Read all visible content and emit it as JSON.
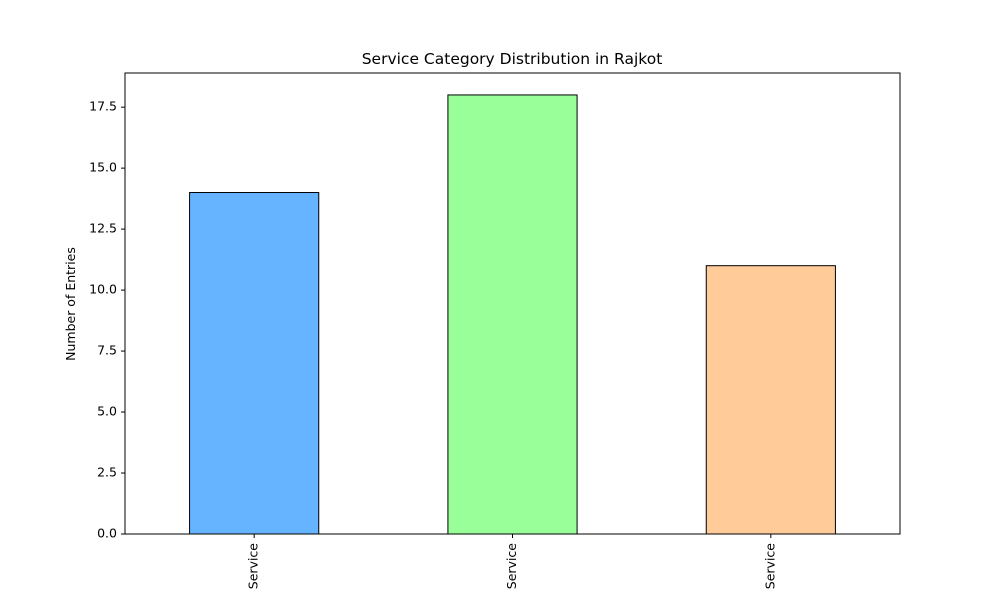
{
  "chart_data": {
    "type": "bar",
    "title": "Service Category Distribution in Rajkot",
    "xlabel": "",
    "ylabel": "Number of Entries",
    "categories": [
      "Service",
      "Service",
      "Service"
    ],
    "values": [
      14,
      18,
      11
    ],
    "bar_colors": [
      "#66b3ff",
      "#99ff99",
      "#ffcc99"
    ],
    "edge_color": "#000000",
    "ylim": [
      0,
      18.9
    ],
    "yticks": [
      0.0,
      2.5,
      5.0,
      7.5,
      10.0,
      12.5,
      15.0,
      17.5
    ],
    "ytick_labels": [
      "0.0",
      "2.5",
      "5.0",
      "7.5",
      "10.0",
      "12.5",
      "15.0",
      "17.5"
    ],
    "grid": false,
    "legend": "none"
  }
}
